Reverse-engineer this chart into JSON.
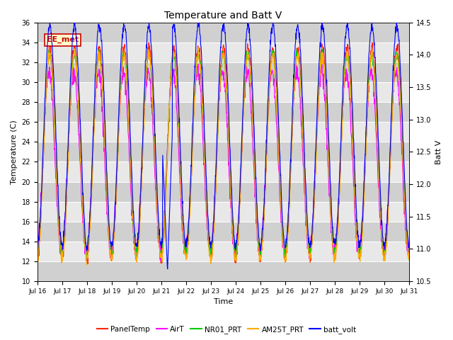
{
  "title": "Temperature and Batt V",
  "xlabel": "Time",
  "ylabel_left": "Temperature (C)",
  "ylabel_right": "Batt V",
  "ylim_left": [
    10,
    36
  ],
  "ylim_right": [
    10.5,
    14.5
  ],
  "yticks_left": [
    10,
    12,
    14,
    16,
    18,
    20,
    22,
    24,
    26,
    28,
    30,
    32,
    34,
    36
  ],
  "yticks_right": [
    10.5,
    11.0,
    11.5,
    12.0,
    12.5,
    13.0,
    13.5,
    14.0,
    14.5
  ],
  "xtick_labels": [
    "Jul 16",
    "Jul 17",
    "Jul 18",
    "Jul 19",
    "Jul 20",
    "Jul 21",
    "Jul 22",
    "Jul 23",
    "Jul 24",
    "Jul 25",
    "Jul 26",
    "Jul 27",
    "Jul 28",
    "Jul 29",
    "Jul 30",
    "Jul 31"
  ],
  "annotation_text": "EE_met",
  "annotation_color": "#cc0000",
  "annotation_bg": "#ffffcc",
  "plot_bg_light": "#e8e8e8",
  "plot_bg_dark": "#d0d0d0",
  "line_colors": {
    "PanelTemp": "#ff2200",
    "AirT": "#ff00ff",
    "NR01_PRT": "#00cc00",
    "AM25T_PRT": "#ffaa00",
    "batt_volt": "#0000ff"
  },
  "legend_labels": [
    "PanelTemp",
    "AirT",
    "NR01_PRT",
    "AM25T_PRT",
    "batt_volt"
  ]
}
